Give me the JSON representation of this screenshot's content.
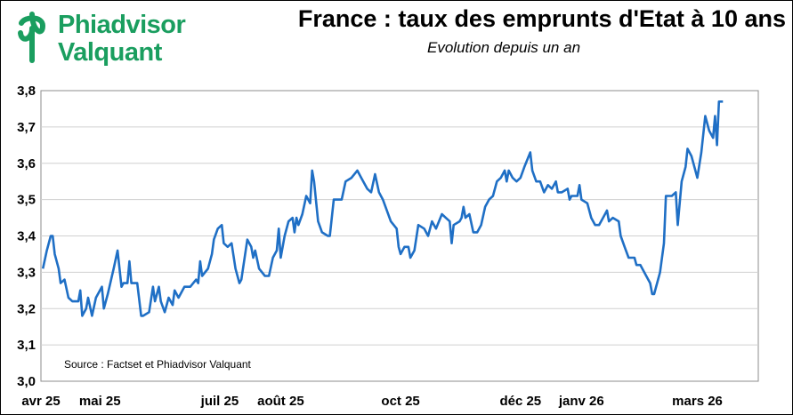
{
  "logo": {
    "line1": "Phiadvisor",
    "line2": "Valquant"
  },
  "title": "France : taux des emprunts d'Etat à 10 ans",
  "subtitle": "Evolution depuis un an",
  "source": "Source : Factset et Phiadvisor Valquant",
  "colors": {
    "line": "#1f6fc5",
    "brand": "#1a9e5f",
    "grid": "#d0d0d0"
  },
  "chart_data": {
    "type": "line",
    "title": "France : taux des emprunts d'Etat à 10 ans",
    "subtitle": "Evolution depuis un an",
    "xlabel": "",
    "ylabel": "",
    "ylim": [
      3.0,
      3.8
    ],
    "yticks": [
      "3,8",
      "3,7",
      "3,6",
      "3,5",
      "3,4",
      "3,3",
      "3,2",
      "3,1",
      "3,0"
    ],
    "xlim": [
      "2025-04-01",
      "2026-04-01"
    ],
    "xticks": [
      {
        "date": "2025-04-01",
        "label": "avr 25"
      },
      {
        "date": "2025-05-01",
        "label": "mai 25"
      },
      {
        "date": "2025-07-01",
        "label": "juil 25"
      },
      {
        "date": "2025-08-01",
        "label": "août 25"
      },
      {
        "date": "2025-10-01",
        "label": "oct 25"
      },
      {
        "date": "2025-12-01",
        "label": "déc 25"
      },
      {
        "date": "2026-01-01",
        "label": "janv 26"
      },
      {
        "date": "2026-03-01",
        "label": "mars 26"
      }
    ],
    "grid": "horizontal",
    "series": [
      {
        "points": [
          [
            "2025-04-02",
            3.31
          ],
          [
            "2025-04-04",
            3.36
          ],
          [
            "2025-04-06",
            3.4
          ],
          [
            "2025-04-07",
            3.4
          ],
          [
            "2025-04-08",
            3.35
          ],
          [
            "2025-04-10",
            3.31
          ],
          [
            "2025-04-11",
            3.27
          ],
          [
            "2025-04-13",
            3.28
          ],
          [
            "2025-04-15",
            3.23
          ],
          [
            "2025-04-17",
            3.22
          ],
          [
            "2025-04-20",
            3.22
          ],
          [
            "2025-04-21",
            3.25
          ],
          [
            "2025-04-22",
            3.18
          ],
          [
            "2025-04-24",
            3.2
          ],
          [
            "2025-04-25",
            3.23
          ],
          [
            "2025-04-27",
            3.18
          ],
          [
            "2025-04-29",
            3.23
          ],
          [
            "2025-05-02",
            3.26
          ],
          [
            "2025-05-03",
            3.2
          ],
          [
            "2025-05-05",
            3.24
          ],
          [
            "2025-05-08",
            3.31
          ],
          [
            "2025-05-10",
            3.36
          ],
          [
            "2025-05-12",
            3.26
          ],
          [
            "2025-05-13",
            3.27
          ],
          [
            "2025-05-15",
            3.27
          ],
          [
            "2025-05-16",
            3.33
          ],
          [
            "2025-05-17",
            3.27
          ],
          [
            "2025-05-20",
            3.27
          ],
          [
            "2025-05-22",
            3.18
          ],
          [
            "2025-05-23",
            3.18
          ],
          [
            "2025-05-26",
            3.19
          ],
          [
            "2025-05-28",
            3.26
          ],
          [
            "2025-05-29",
            3.22
          ],
          [
            "2025-05-31",
            3.26
          ],
          [
            "2025-06-01",
            3.22
          ],
          [
            "2025-06-03",
            3.19
          ],
          [
            "2025-06-05",
            3.23
          ],
          [
            "2025-06-07",
            3.21
          ],
          [
            "2025-06-08",
            3.25
          ],
          [
            "2025-06-10",
            3.23
          ],
          [
            "2025-06-13",
            3.26
          ],
          [
            "2025-06-16",
            3.26
          ],
          [
            "2025-06-19",
            3.28
          ],
          [
            "2025-06-20",
            3.27
          ],
          [
            "2025-06-21",
            3.33
          ],
          [
            "2025-06-22",
            3.29
          ],
          [
            "2025-06-25",
            3.31
          ],
          [
            "2025-06-27",
            3.35
          ],
          [
            "2025-06-28",
            3.39
          ],
          [
            "2025-06-30",
            3.42
          ],
          [
            "2025-07-02",
            3.43
          ],
          [
            "2025-07-03",
            3.38
          ],
          [
            "2025-07-05",
            3.37
          ],
          [
            "2025-07-07",
            3.38
          ],
          [
            "2025-07-09",
            3.31
          ],
          [
            "2025-07-11",
            3.27
          ],
          [
            "2025-07-12",
            3.28
          ],
          [
            "2025-07-15",
            3.39
          ],
          [
            "2025-07-17",
            3.37
          ],
          [
            "2025-07-18",
            3.34
          ],
          [
            "2025-07-19",
            3.36
          ],
          [
            "2025-07-21",
            3.31
          ],
          [
            "2025-07-24",
            3.29
          ],
          [
            "2025-07-26",
            3.29
          ],
          [
            "2025-07-28",
            3.34
          ],
          [
            "2025-07-30",
            3.36
          ],
          [
            "2025-07-31",
            3.42
          ],
          [
            "2025-08-01",
            3.34
          ],
          [
            "2025-08-03",
            3.4
          ],
          [
            "2025-08-05",
            3.44
          ],
          [
            "2025-08-07",
            3.45
          ],
          [
            "2025-08-08",
            3.41
          ],
          [
            "2025-08-09",
            3.45
          ],
          [
            "2025-08-10",
            3.43
          ],
          [
            "2025-08-12",
            3.46
          ],
          [
            "2025-08-14",
            3.51
          ],
          [
            "2025-08-16",
            3.49
          ],
          [
            "2025-08-17",
            3.58
          ],
          [
            "2025-08-18",
            3.55
          ],
          [
            "2025-08-20",
            3.44
          ],
          [
            "2025-08-22",
            3.41
          ],
          [
            "2025-08-25",
            3.4
          ],
          [
            "2025-08-26",
            3.4
          ],
          [
            "2025-08-28",
            3.5
          ],
          [
            "2025-08-29",
            3.5
          ],
          [
            "2025-09-01",
            3.5
          ],
          [
            "2025-09-03",
            3.55
          ],
          [
            "2025-09-06",
            3.56
          ],
          [
            "2025-09-09",
            3.58
          ],
          [
            "2025-09-11",
            3.56
          ],
          [
            "2025-09-14",
            3.53
          ],
          [
            "2025-09-16",
            3.52
          ],
          [
            "2025-09-18",
            3.57
          ],
          [
            "2025-09-20",
            3.52
          ],
          [
            "2025-09-22",
            3.5
          ],
          [
            "2025-09-26",
            3.44
          ],
          [
            "2025-09-29",
            3.42
          ],
          [
            "2025-09-30",
            3.37
          ],
          [
            "2025-10-01",
            3.35
          ],
          [
            "2025-10-03",
            3.37
          ],
          [
            "2025-10-05",
            3.37
          ],
          [
            "2025-10-06",
            3.34
          ],
          [
            "2025-10-08",
            3.36
          ],
          [
            "2025-10-10",
            3.43
          ],
          [
            "2025-10-13",
            3.42
          ],
          [
            "2025-10-15",
            3.4
          ],
          [
            "2025-10-17",
            3.44
          ],
          [
            "2025-10-19",
            3.42
          ],
          [
            "2025-10-22",
            3.46
          ],
          [
            "2025-10-24",
            3.45
          ],
          [
            "2025-10-26",
            3.44
          ],
          [
            "2025-10-27",
            3.38
          ],
          [
            "2025-10-28",
            3.43
          ],
          [
            "2025-10-31",
            3.44
          ],
          [
            "2025-11-01",
            3.45
          ],
          [
            "2025-11-02",
            3.48
          ],
          [
            "2025-11-03",
            3.45
          ],
          [
            "2025-11-05",
            3.46
          ],
          [
            "2025-11-07",
            3.41
          ],
          [
            "2025-11-09",
            3.41
          ],
          [
            "2025-11-11",
            3.43
          ],
          [
            "2025-11-13",
            3.48
          ],
          [
            "2025-11-15",
            3.5
          ],
          [
            "2025-11-17",
            3.51
          ],
          [
            "2025-11-19",
            3.55
          ],
          [
            "2025-11-21",
            3.56
          ],
          [
            "2025-11-23",
            3.58
          ],
          [
            "2025-11-24",
            3.55
          ],
          [
            "2025-11-25",
            3.58
          ],
          [
            "2025-11-27",
            3.56
          ],
          [
            "2025-11-29",
            3.55
          ],
          [
            "2025-12-01",
            3.56
          ],
          [
            "2025-12-03",
            3.59
          ],
          [
            "2025-12-06",
            3.63
          ],
          [
            "2025-12-07",
            3.58
          ],
          [
            "2025-12-09",
            3.55
          ],
          [
            "2025-12-11",
            3.55
          ],
          [
            "2025-12-13",
            3.52
          ],
          [
            "2025-12-15",
            3.54
          ],
          [
            "2025-12-17",
            3.53
          ],
          [
            "2025-12-19",
            3.55
          ],
          [
            "2025-12-20",
            3.52
          ],
          [
            "2025-12-22",
            3.52
          ],
          [
            "2025-12-25",
            3.53
          ],
          [
            "2025-12-26",
            3.5
          ],
          [
            "2025-12-27",
            3.51
          ],
          [
            "2025-12-30",
            3.51
          ],
          [
            "2025-12-31",
            3.54
          ],
          [
            "2026-01-01",
            3.5
          ],
          [
            "2026-01-04",
            3.49
          ],
          [
            "2026-01-06",
            3.45
          ],
          [
            "2026-01-08",
            3.43
          ],
          [
            "2026-01-10",
            3.43
          ],
          [
            "2026-01-13",
            3.46
          ],
          [
            "2026-01-14",
            3.47
          ],
          [
            "2026-01-15",
            3.44
          ],
          [
            "2026-01-17",
            3.45
          ],
          [
            "2026-01-20",
            3.44
          ],
          [
            "2026-01-21",
            3.4
          ],
          [
            "2026-01-23",
            3.37
          ],
          [
            "2026-01-25",
            3.34
          ],
          [
            "2026-01-28",
            3.34
          ],
          [
            "2026-01-29",
            3.32
          ],
          [
            "2026-01-31",
            3.32
          ],
          [
            "2026-02-03",
            3.29
          ],
          [
            "2026-02-05",
            3.27
          ],
          [
            "2026-02-06",
            3.24
          ],
          [
            "2026-02-07",
            3.24
          ],
          [
            "2026-02-09",
            3.28
          ],
          [
            "2026-02-10",
            3.3
          ],
          [
            "2026-02-12",
            3.38
          ],
          [
            "2026-02-13",
            3.51
          ],
          [
            "2026-02-16",
            3.51
          ],
          [
            "2026-02-18",
            3.52
          ],
          [
            "2026-02-19",
            3.43
          ],
          [
            "2026-02-21",
            3.55
          ],
          [
            "2026-02-23",
            3.59
          ],
          [
            "2026-02-24",
            3.64
          ],
          [
            "2026-02-26",
            3.62
          ],
          [
            "2026-02-27",
            3.6
          ],
          [
            "2026-03-01",
            3.56
          ],
          [
            "2026-03-03",
            3.63
          ],
          [
            "2026-03-05",
            3.73
          ],
          [
            "2026-03-07",
            3.69
          ],
          [
            "2026-03-09",
            3.67
          ],
          [
            "2026-03-10",
            3.73
          ],
          [
            "2026-03-11",
            3.65
          ],
          [
            "2026-03-12",
            3.77
          ],
          [
            "2026-03-14",
            3.77
          ]
        ]
      }
    ]
  }
}
